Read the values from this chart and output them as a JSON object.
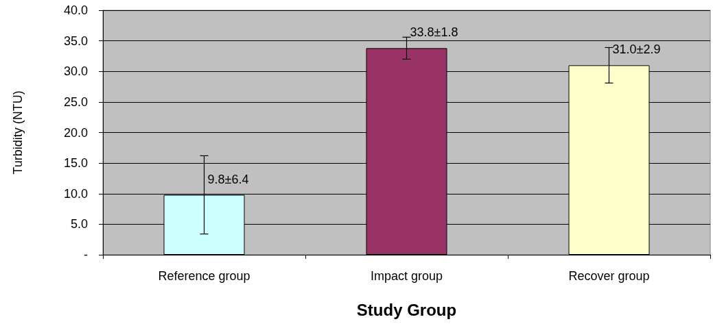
{
  "chart_data": {
    "type": "bar",
    "xlabel": "Study Group",
    "ylabel": "Turbidity (NTU)",
    "categories": [
      "Reference group",
      "Impact group",
      "Recover group"
    ],
    "values": [
      9.8,
      33.8,
      31.0
    ],
    "colors": [
      "#ccffff",
      "#993366",
      "#ffffcc"
    ],
    "errors": [
      6.4,
      1.8,
      2.9
    ],
    "value_labels": [
      "9.8±6.4",
      "33.8±1.8",
      "31.0±2.9"
    ],
    "ylim": [
      0,
      40
    ],
    "yticks": [
      {
        "value": 0,
        "label": "-"
      },
      {
        "value": 5,
        "label": "5.0"
      },
      {
        "value": 10,
        "label": "10.0"
      },
      {
        "value": 15,
        "label": "15.0"
      },
      {
        "value": 20,
        "label": "20.0"
      },
      {
        "value": 25,
        "label": "25.0"
      },
      {
        "value": 30,
        "label": "30.0"
      },
      {
        "value": 35,
        "label": "35.0"
      },
      {
        "value": 40,
        "label": "40.0"
      }
    ],
    "grid": "y"
  }
}
